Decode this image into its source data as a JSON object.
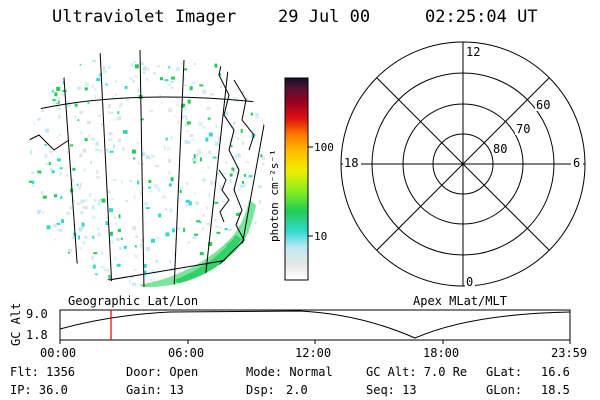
{
  "header": {
    "instrument": "Ultraviolet Imager",
    "date": "29 Jul 00",
    "time": "02:25:04 UT"
  },
  "colorbar": {
    "unit_label": "photon cm⁻²s⁻¹",
    "ticks": [
      "100",
      "10"
    ]
  },
  "polar": {
    "mlt_labels": {
      "top": "12",
      "bottom": "0",
      "left": "18",
      "right": "6"
    },
    "lat_labels": [
      "60",
      "70",
      "80"
    ]
  },
  "panels": {
    "left_label": "Geographic Lat/Lon",
    "right_label": "Apex MLat/MLT"
  },
  "altitude_plot": {
    "ylabel": "GC Alt",
    "yticks": [
      "9.0",
      "1.8"
    ],
    "xticks": [
      "00:00",
      "06:00",
      "12:00",
      "18:00",
      "23:59"
    ],
    "marker_time": "02:25",
    "marker_color": "#e00000"
  },
  "info": {
    "flt": "Flt: 1356",
    "ip": "IP: 36.0",
    "door": "Door: Open",
    "gain": "Gain: 13",
    "mode": "Mode: Normal",
    "dsp_label": "Dsp:",
    "dsp_value": "2.0",
    "gcalt": "GC Alt: 7.0 Re",
    "seq": "Seq: 13",
    "glat": "GLat:",
    "glat_value": "16.6",
    "glon": "GLon:",
    "glon_value": "18.5"
  }
}
